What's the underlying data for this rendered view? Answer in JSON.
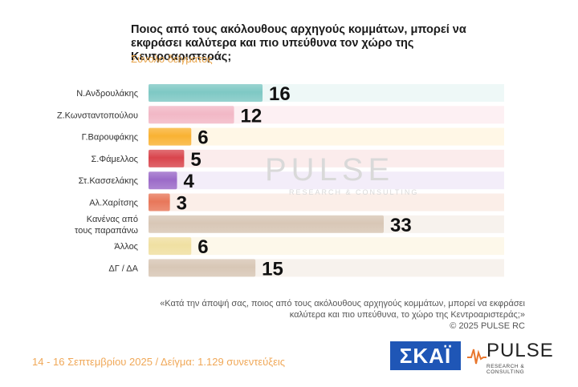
{
  "title": "Ποιος από τους ακόλουθους αρχηγούς κομμάτων, μπορεί να εκφράσει καλύτερα και πιο υπεύθυνα τον χώρο της Κεντροαριστεράς;",
  "subtitle": "Σύνολο δείγματος",
  "watermark": {
    "main": "PULSE",
    "sub": "RESEARCH & CONSULTING"
  },
  "question": "«Κατά την άποψή σας, ποιος από τους ακόλουθους αρχηγούς κομμάτων, μπορεί να εκφράσει καλύτερα και πιο υπεύθυνα, το χώρο της Κεντροαριστεράς;»",
  "copyright": "© 2025 PULSE RC",
  "footer": "14 - 16 Σεπτεμβρίου 2025  /  Δείγμα:  1.129 συνεντεύξεις",
  "logos": {
    "skai": "ΣΚΑΪ",
    "pulse": "PULSE",
    "pulse_sub": "RESEARCH & CONSULTING"
  },
  "chart_data": {
    "type": "bar",
    "orientation": "horizontal",
    "categories": [
      [
        "Ν.Ανδρουλάκης"
      ],
      [
        "Ζ.Κωνσταντοπούλου"
      ],
      [
        "Γ.Βαρουφάκης"
      ],
      [
        "Σ.Φάμελλος"
      ],
      [
        "Στ.Κασσελάκης"
      ],
      [
        "Αλ.Χαρίτσης"
      ],
      [
        "Κανένας από",
        "τους παραπάνω"
      ],
      [
        "Άλλος"
      ],
      [
        "ΔΓ / ΔΑ"
      ]
    ],
    "values": [
      16,
      12,
      6,
      5,
      4,
      3,
      33,
      6,
      15
    ],
    "colors": [
      "#7ec8c4",
      "#f2b8c6",
      "#f9b233",
      "#d9454d",
      "#9b6ac8",
      "#e8775a",
      "#d8c7b6",
      "#f0e0a2",
      "#d8c7b6"
    ],
    "band_colors": [
      "#eef8f7",
      "#fdf0f3",
      "#fff7e6",
      "#fbecec",
      "#f3edf9",
      "#fbeee8",
      "#f7f2ed",
      "#fdf8ea",
      "#f7f2ed"
    ],
    "xlim": [
      0,
      33
    ]
  }
}
